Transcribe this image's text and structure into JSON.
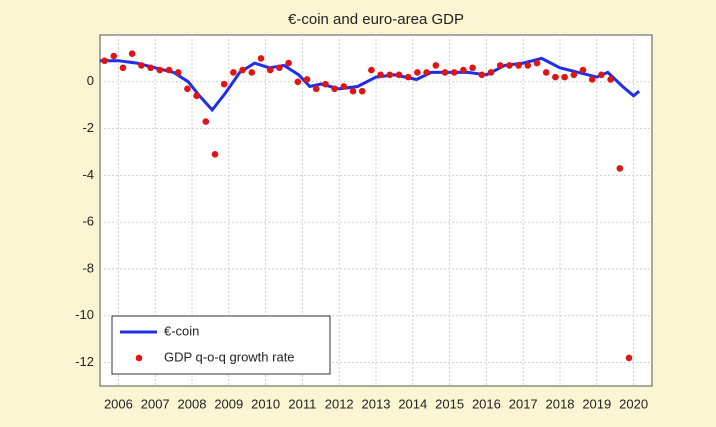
{
  "chart_data": {
    "type": "line",
    "title": "€-coin and euro-area GDP",
    "xlim": [
      2006,
      2021
    ],
    "xticks": [
      {
        "value": 2006.5,
        "label": "2006"
      },
      {
        "value": 2007.5,
        "label": "2007"
      },
      {
        "value": 2008.5,
        "label": "2008"
      },
      {
        "value": 2009.5,
        "label": "2009"
      },
      {
        "value": 2010.5,
        "label": "2010"
      },
      {
        "value": 2011.5,
        "label": "2011"
      },
      {
        "value": 2012.5,
        "label": "2012"
      },
      {
        "value": 2013.5,
        "label": "2013"
      },
      {
        "value": 2014.5,
        "label": "2014"
      },
      {
        "value": 2015.5,
        "label": "2015"
      },
      {
        "value": 2016.5,
        "label": "2016"
      },
      {
        "value": 2017.5,
        "label": "2017"
      },
      {
        "value": 2018.5,
        "label": "2018"
      },
      {
        "value": 2019.5,
        "label": "2019"
      },
      {
        "value": 2020.5,
        "label": "2020"
      }
    ],
    "ylim": [
      -13,
      2
    ],
    "yticks": [
      -12,
      -10,
      -8,
      -6,
      -4,
      -2,
      0
    ],
    "grid": true,
    "legend": "lower left",
    "series": [
      {
        "name": "€-coin",
        "color": "#1f2fe6",
        "style": "line",
        "x": [
          2006.0,
          2006.5,
          2007.0,
          2007.5,
          2008.0,
          2008.4,
          2008.7,
          2009.05,
          2009.4,
          2009.8,
          2010.2,
          2010.6,
          2011.0,
          2011.4,
          2011.7,
          2012.0,
          2012.5,
          2013.0,
          2013.5,
          2014.0,
          2014.6,
          2015.0,
          2015.5,
          2016.0,
          2016.5,
          2017.0,
          2017.5,
          2018.0,
          2018.5,
          2019.0,
          2019.5,
          2019.8,
          2020.2,
          2020.5,
          2020.65
        ],
        "values": [
          0.9,
          0.9,
          0.8,
          0.6,
          0.4,
          0.0,
          -0.6,
          -1.2,
          -0.5,
          0.4,
          0.8,
          0.6,
          0.7,
          0.3,
          -0.2,
          -0.1,
          -0.3,
          -0.2,
          0.2,
          0.3,
          0.1,
          0.4,
          0.4,
          0.4,
          0.3,
          0.7,
          0.8,
          1.0,
          0.6,
          0.4,
          0.2,
          0.4,
          -0.2,
          -0.6,
          -0.4
        ]
      },
      {
        "name": "GDP q-o-q growth rate",
        "color": "#e01414",
        "style": "points",
        "x": [
          2006.125,
          2006.375,
          2006.625,
          2006.875,
          2007.125,
          2007.375,
          2007.625,
          2007.875,
          2008.125,
          2008.375,
          2008.625,
          2008.875,
          2009.125,
          2009.375,
          2009.625,
          2009.875,
          2010.125,
          2010.375,
          2010.625,
          2010.875,
          2011.125,
          2011.375,
          2011.625,
          2011.875,
          2012.125,
          2012.375,
          2012.625,
          2012.875,
          2013.125,
          2013.375,
          2013.625,
          2013.875,
          2014.125,
          2014.375,
          2014.625,
          2014.875,
          2015.125,
          2015.375,
          2015.625,
          2015.875,
          2016.125,
          2016.375,
          2016.625,
          2016.875,
          2017.125,
          2017.375,
          2017.625,
          2017.875,
          2018.125,
          2018.375,
          2018.625,
          2018.875,
          2019.125,
          2019.375,
          2019.625,
          2019.875,
          2020.125,
          2020.375
        ],
        "values": [
          0.9,
          1.1,
          0.6,
          1.2,
          0.7,
          0.6,
          0.5,
          0.5,
          0.4,
          -0.3,
          -0.6,
          -1.7,
          -3.1,
          -0.1,
          0.4,
          0.5,
          0.4,
          1.0,
          0.5,
          0.6,
          0.8,
          0.0,
          0.1,
          -0.3,
          -0.1,
          -0.3,
          -0.2,
          -0.4,
          -0.4,
          0.5,
          0.3,
          0.3,
          0.3,
          0.2,
          0.4,
          0.4,
          0.7,
          0.4,
          0.4,
          0.5,
          0.6,
          0.3,
          0.4,
          0.7,
          0.7,
          0.7,
          0.7,
          0.8,
          0.4,
          0.2,
          0.2,
          0.3,
          0.5,
          0.1,
          0.3,
          0.1,
          -3.7,
          -11.8
        ]
      }
    ]
  }
}
